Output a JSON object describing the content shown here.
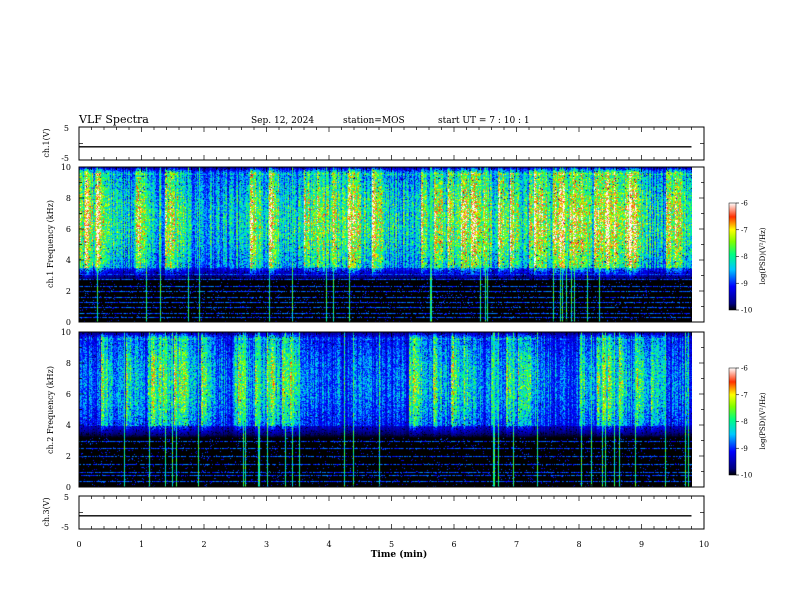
{
  "header": {
    "title": "VLF Spectra",
    "date": "Sep. 12, 2024",
    "station": "station=MOS",
    "start": "start  UT =   7 : 10 : 1"
  },
  "colorbar": {
    "label": "log(PSD)(V²/Hz)",
    "ticks": [
      "-6",
      "-7",
      "-8",
      "-9",
      "-10"
    ]
  },
  "chart_data": [
    {
      "type": "line",
      "ylabel": "ch.1(V)",
      "ylim": [
        -5,
        5
      ],
      "yticks": [
        "5",
        "-5"
      ],
      "xlim": [
        0,
        9.8
      ],
      "y_value": -1
    },
    {
      "type": "heatmap",
      "ylabel": "ch.1 Frequency (kHz)",
      "ylim": [
        0,
        10
      ],
      "yticks": [
        "0",
        "2",
        "4",
        "6",
        "8",
        "10"
      ],
      "xlim": [
        0,
        9.8
      ],
      "colorscale": {
        "min": -10,
        "max": -6,
        "unit": "log(PSD)(V²/Hz)"
      },
      "band_kHz": [
        3.5,
        9.5
      ],
      "lines_kHz": [
        0.3,
        0.6,
        1.0,
        1.3,
        1.6,
        2.0,
        2.3,
        2.8,
        3.1
      ],
      "peak_level": -6.5
    },
    {
      "type": "heatmap",
      "ylabel": "ch.2 Frequency (kHz)",
      "ylim": [
        0,
        10
      ],
      "yticks": [
        "0",
        "2",
        "4",
        "6",
        "8",
        "10"
      ],
      "xlim": [
        0,
        9.8
      ],
      "colorscale": {
        "min": -10,
        "max": -6,
        "unit": "log(PSD)(V²/Hz)"
      },
      "band_kHz": [
        4.0,
        9.5
      ],
      "lines_kHz": [
        0.4,
        0.8,
        1.0,
        1.5,
        2.0,
        2.5,
        3.0
      ],
      "peak_level": -7.5
    },
    {
      "type": "line",
      "ylabel": "ch.3(V)",
      "ylim": [
        -5,
        5
      ],
      "yticks": [
        "5",
        "-5"
      ],
      "xlim": [
        0,
        9.8
      ],
      "y_value": -1
    }
  ],
  "xaxis": {
    "label": "Time  (min)",
    "range": [
      0,
      10
    ],
    "ticks": [
      "0",
      "1",
      "2",
      "3",
      "4",
      "5",
      "6",
      "7",
      "8",
      "9",
      "10"
    ]
  }
}
